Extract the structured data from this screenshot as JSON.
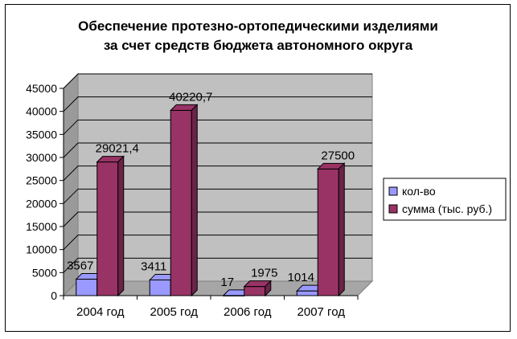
{
  "chart_data": {
    "type": "bar",
    "title": "Обеспечение протезно-ортопедическими изделиями за счет средств бюджета автономного округа",
    "title_lines": [
      "Обеспечение протезно-ортопедическими изделиями",
      "за счет средств бюджета автономного округа"
    ],
    "categories": [
      "2004 год",
      "2005 год",
      "2006 год",
      "2007 год"
    ],
    "series": [
      {
        "name": "кол-во",
        "values": [
          3567,
          3411,
          17,
          1014
        ],
        "labels": [
          "3567",
          "3411",
          "17",
          "1014"
        ],
        "color": "#9999ff",
        "dark_color": "#6d6dbd"
      },
      {
        "name": "сумма (тыс. руб.)",
        "values": [
          29021.4,
          40220.7,
          1975,
          27500
        ],
        "labels": [
          "29021,4",
          "40220,7",
          "1975",
          "27500"
        ],
        "color": "#993366",
        "dark_color": "#6b2347"
      }
    ],
    "ylim": [
      0,
      45000
    ],
    "yticks": [
      0,
      5000,
      10000,
      15000,
      20000,
      25000,
      30000,
      35000,
      40000,
      45000
    ],
    "grid": true,
    "legend_position": "right",
    "style": "3d-clustered-column"
  }
}
